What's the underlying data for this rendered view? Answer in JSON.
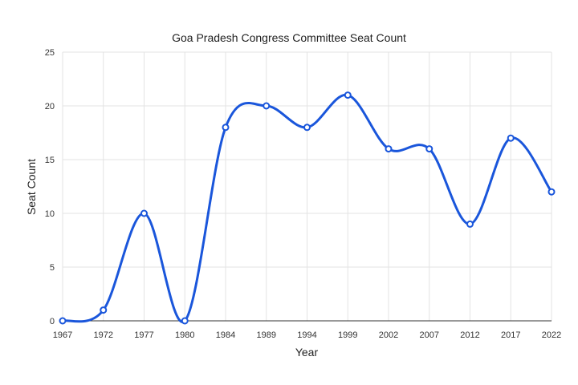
{
  "chart_data": {
    "type": "line",
    "title": "Goa Pradesh Congress Committee Seat Count",
    "xlabel": "Year",
    "ylabel": "Seat Count",
    "categories": [
      "1967",
      "1972",
      "1977",
      "1980",
      "1984",
      "1989",
      "1994",
      "1999",
      "2002",
      "2007",
      "2012",
      "2017",
      "2022"
    ],
    "series": [
      {
        "values": [
          0,
          1,
          10,
          0,
          18,
          20,
          18,
          21,
          16,
          16,
          9,
          17,
          12
        ]
      }
    ],
    "ylim": [
      0,
      25
    ],
    "yticks": [
      "0",
      "5",
      "10",
      "15",
      "20",
      "25"
    ],
    "grid": true,
    "legend": "none",
    "line_color": "#1a56db",
    "smooth": true
  }
}
